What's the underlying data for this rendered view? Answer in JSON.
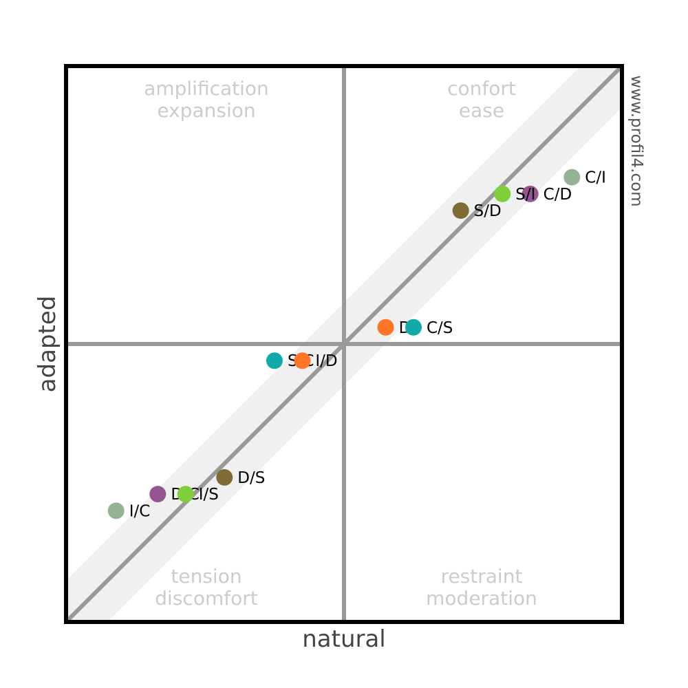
{
  "chart_data": {
    "type": "scatter",
    "xlabel": "natural",
    "ylabel": "adapted",
    "watermark": "www.profil4.com",
    "xlim": [
      -1,
      1
    ],
    "ylim": [
      -1,
      1
    ],
    "grid": false,
    "quadrant_labels": {
      "top_left": [
        "amplification",
        "expansion"
      ],
      "top_right": [
        "confort",
        "ease"
      ],
      "bottom_left": [
        "tension",
        "discomfort"
      ],
      "bottom_right": [
        "restraint",
        "moderation"
      ]
    },
    "points": [
      {
        "label": "C/I",
        "x": 0.82,
        "y": 0.6,
        "color": "#93b394"
      },
      {
        "label": "C/D",
        "x": 0.67,
        "y": 0.54,
        "color": "#955593"
      },
      {
        "label": "S/I",
        "x": 0.57,
        "y": 0.54,
        "color": "#7fcf3a"
      },
      {
        "label": "S/D",
        "x": 0.42,
        "y": 0.48,
        "color": "#7f6b35"
      },
      {
        "label": "D/I",
        "x": 0.15,
        "y": 0.06,
        "color": "#ff7527"
      },
      {
        "label": "C/S",
        "x": 0.25,
        "y": 0.06,
        "color": "#11aaaa"
      },
      {
        "label": "S/C",
        "x": -0.25,
        "y": -0.06,
        "color": "#11aaaa"
      },
      {
        "label": "I/D",
        "x": -0.15,
        "y": -0.06,
        "color": "#ff7527"
      },
      {
        "label": "D/S",
        "x": -0.43,
        "y": -0.48,
        "color": "#7f6b35"
      },
      {
        "label": "D/C",
        "x": -0.67,
        "y": -0.54,
        "color": "#955593"
      },
      {
        "label": "I/S",
        "x": -0.57,
        "y": -0.54,
        "color": "#7fcf3a"
      },
      {
        "label": "I/C",
        "x": -0.82,
        "y": -0.6,
        "color": "#93b394"
      }
    ]
  }
}
